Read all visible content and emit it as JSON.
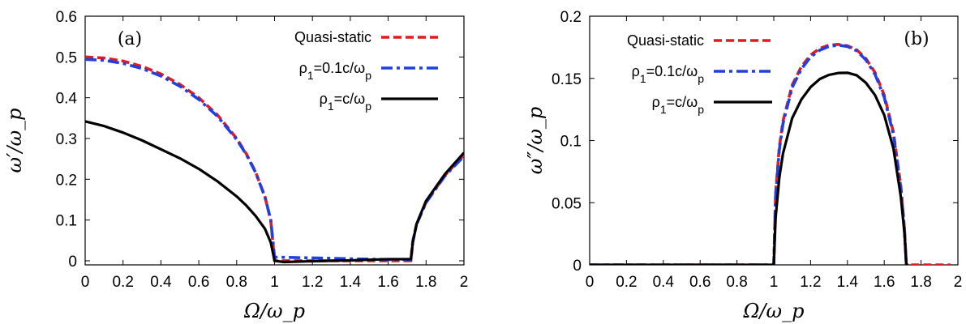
{
  "chart_data": [
    {
      "type": "line",
      "panel_label": "(a)",
      "xlabel": "Ω/ω_p",
      "ylabel": "ω′/ω_p",
      "xlim": [
        0,
        2
      ],
      "ylim": [
        -0.01,
        0.6
      ],
      "xticks": [
        "0",
        "0.2",
        "0.4",
        "0.6",
        "0.8",
        "1",
        "1.2",
        "1.4",
        "1.6",
        "1.8",
        "2"
      ],
      "yticks": [
        "0",
        "0.1",
        "0.2",
        "0.3",
        "0.4",
        "0.5",
        "0.6"
      ],
      "legend_position": "top-right",
      "series": [
        {
          "name": "Quasi-static",
          "name_sub": "",
          "color": "#e41a1c",
          "dash": "dashed",
          "points": [
            [
              0,
              0.5
            ],
            [
              0.1,
              0.4975
            ],
            [
              0.2,
              0.4899
            ],
            [
              0.3,
              0.477
            ],
            [
              0.4,
              0.4583
            ],
            [
              0.5,
              0.433
            ],
            [
              0.6,
              0.4
            ],
            [
              0.7,
              0.3571
            ],
            [
              0.8,
              0.3
            ],
            [
              0.85,
              0.2634
            ],
            [
              0.9,
              0.2179
            ],
            [
              0.95,
              0.156
            ],
            [
              0.98,
              0.0995
            ],
            [
              1.0,
              0.0
            ],
            [
              1.1,
              0.0
            ],
            [
              1.3,
              0.0
            ],
            [
              1.5,
              0.0
            ],
            [
              1.6,
              0.0
            ],
            [
              1.7,
              0.0
            ],
            [
              1.72,
              0.0
            ],
            [
              1.73,
              0.0474
            ],
            [
              1.75,
              0.0901
            ],
            [
              1.8,
              0.1436
            ],
            [
              1.9,
              0.2099
            ],
            [
              2.0,
              0.2598
            ]
          ]
        },
        {
          "name": "ρ",
          "name_sub": "1",
          "name_rest": "=0.1c/ω",
          "name_sub2": "p",
          "color": "#1f3fe0",
          "dash": "dashdot",
          "points": [
            [
              0,
              0.494
            ],
            [
              0.1,
              0.4918
            ],
            [
              0.2,
              0.4843
            ],
            [
              0.3,
              0.4716
            ],
            [
              0.4,
              0.4532
            ],
            [
              0.5,
              0.4283
            ],
            [
              0.6,
              0.3959
            ],
            [
              0.7,
              0.3537
            ],
            [
              0.8,
              0.2975
            ],
            [
              0.85,
              0.2614
            ],
            [
              0.9,
              0.2166
            ],
            [
              0.95,
              0.1556
            ],
            [
              0.98,
              0.1
            ],
            [
              1.0,
              0.009
            ],
            [
              1.1,
              0.008
            ],
            [
              1.3,
              0.006
            ],
            [
              1.5,
              0.004
            ],
            [
              1.6,
              0.003
            ],
            [
              1.7,
              0.003
            ],
            [
              1.72,
              0.003
            ],
            [
              1.73,
              0.0478
            ],
            [
              1.75,
              0.0895
            ],
            [
              1.8,
              0.1426
            ],
            [
              1.9,
              0.2084
            ],
            [
              2.0,
              0.2565
            ]
          ]
        },
        {
          "name": "ρ",
          "name_sub": "1",
          "name_rest": "=c/ω",
          "name_sub2": "p",
          "color": "#000000",
          "dash": "solid",
          "points": [
            [
              0,
              0.342
            ],
            [
              0.1,
              0.3305
            ],
            [
              0.2,
              0.3145
            ],
            [
              0.3,
              0.2955
            ],
            [
              0.4,
              0.2735
            ],
            [
              0.5,
              0.2515
            ],
            [
              0.6,
              0.2255
            ],
            [
              0.7,
              0.1945
            ],
            [
              0.8,
              0.158
            ],
            [
              0.85,
              0.136
            ],
            [
              0.9,
              0.11
            ],
            [
              0.95,
              0.078
            ],
            [
              0.98,
              0.045
            ],
            [
              1.0,
              0.0
            ],
            [
              1.05,
              -0.003
            ],
            [
              1.2,
              -0.001
            ],
            [
              1.4,
              0.001
            ],
            [
              1.6,
              0.004
            ],
            [
              1.7,
              0.004
            ],
            [
              1.72,
              0.004
            ],
            [
              1.73,
              0.045
            ],
            [
              1.75,
              0.0905
            ],
            [
              1.8,
              0.147
            ],
            [
              1.9,
              0.213
            ],
            [
              2.0,
              0.265
            ]
          ]
        }
      ]
    },
    {
      "type": "line",
      "panel_label": "(b)",
      "xlabel": "Ω/ω_p",
      "ylabel": "ω″/ω_p",
      "xlim": [
        0,
        2
      ],
      "ylim": [
        0,
        0.2
      ],
      "xticks": [
        "0",
        "0.2",
        "0.4",
        "0.6",
        "0.8",
        "1",
        "1.2",
        "1.4",
        "1.6",
        "1.8",
        "2"
      ],
      "yticks": [
        "0",
        "0.05",
        "0.1",
        "0.15",
        "0.2"
      ],
      "legend_position": "top-left",
      "series": [
        {
          "name": "Quasi-static",
          "name_sub": "",
          "color": "#e41a1c",
          "dash": "dashed",
          "points": [
            [
              0,
              0
            ],
            [
              0.5,
              0
            ],
            [
              0.99,
              0
            ],
            [
              1.0,
              0.0
            ],
            [
              1.01,
              0.0574
            ],
            [
              1.03,
              0.0945
            ],
            [
              1.05,
              0.1156
            ],
            [
              1.1,
              0.1446
            ],
            [
              1.15,
              0.1594
            ],
            [
              1.2,
              0.1688
            ],
            [
              1.25,
              0.1741
            ],
            [
              1.3,
              0.1767
            ],
            [
              1.35,
              0.1773
            ],
            [
              1.4,
              0.1762
            ],
            [
              1.45,
              0.173
            ],
            [
              1.5,
              0.166
            ],
            [
              1.55,
              0.1547
            ],
            [
              1.6,
              0.1365
            ],
            [
              1.65,
              0.1065
            ],
            [
              1.69,
              0.0633
            ],
            [
              1.71,
              0.0285
            ],
            [
              1.72,
              0.0
            ],
            [
              1.8,
              0
            ],
            [
              1.96,
              0
            ]
          ]
        },
        {
          "name": "ρ",
          "name_sub": "1",
          "name_rest": "=0.1c/ω",
          "name_sub2": "p",
          "color": "#1f3fe0",
          "dash": "dashdot",
          "points": [
            [
              0,
              0
            ],
            [
              0.5,
              0
            ],
            [
              0.99,
              0
            ],
            [
              1.0,
              0.0
            ],
            [
              1.01,
              0.0555
            ],
            [
              1.03,
              0.0924
            ],
            [
              1.05,
              0.1136
            ],
            [
              1.1,
              0.1427
            ],
            [
              1.15,
              0.1576
            ],
            [
              1.2,
              0.1672
            ],
            [
              1.25,
              0.1727
            ],
            [
              1.3,
              0.1757
            ],
            [
              1.35,
              0.1767
            ],
            [
              1.4,
              0.1757
            ],
            [
              1.45,
              0.1722
            ],
            [
              1.5,
              0.1649
            ],
            [
              1.55,
              0.1532
            ],
            [
              1.6,
              0.1348
            ],
            [
              1.65,
              0.1048
            ],
            [
              1.69,
              0.062
            ],
            [
              1.71,
              0.028
            ],
            [
              1.72,
              0.0
            ],
            [
              1.73,
              0
            ]
          ]
        },
        {
          "name": "ρ",
          "name_sub": "1",
          "name_rest": "=c/ω",
          "name_sub2": "p",
          "color": "#000000",
          "dash": "solid",
          "points": [
            [
              0,
              0
            ],
            [
              0.5,
              0
            ],
            [
              0.99,
              0
            ],
            [
              1.0,
              0.0
            ],
            [
              1.01,
              0.038
            ],
            [
              1.03,
              0.07
            ],
            [
              1.05,
              0.0895
            ],
            [
              1.1,
              0.118
            ],
            [
              1.15,
              0.133
            ],
            [
              1.2,
              0.143
            ],
            [
              1.25,
              0.1495
            ],
            [
              1.3,
              0.1528
            ],
            [
              1.35,
              0.1543
            ],
            [
              1.4,
              0.1545
            ],
            [
              1.45,
              0.1525
            ],
            [
              1.5,
              0.1465
            ],
            [
              1.55,
              0.1365
            ],
            [
              1.6,
              0.1205
            ],
            [
              1.65,
              0.0935
            ],
            [
              1.69,
              0.055
            ],
            [
              1.71,
              0.025
            ],
            [
              1.72,
              0.0
            ],
            [
              1.73,
              0
            ]
          ]
        }
      ]
    }
  ]
}
